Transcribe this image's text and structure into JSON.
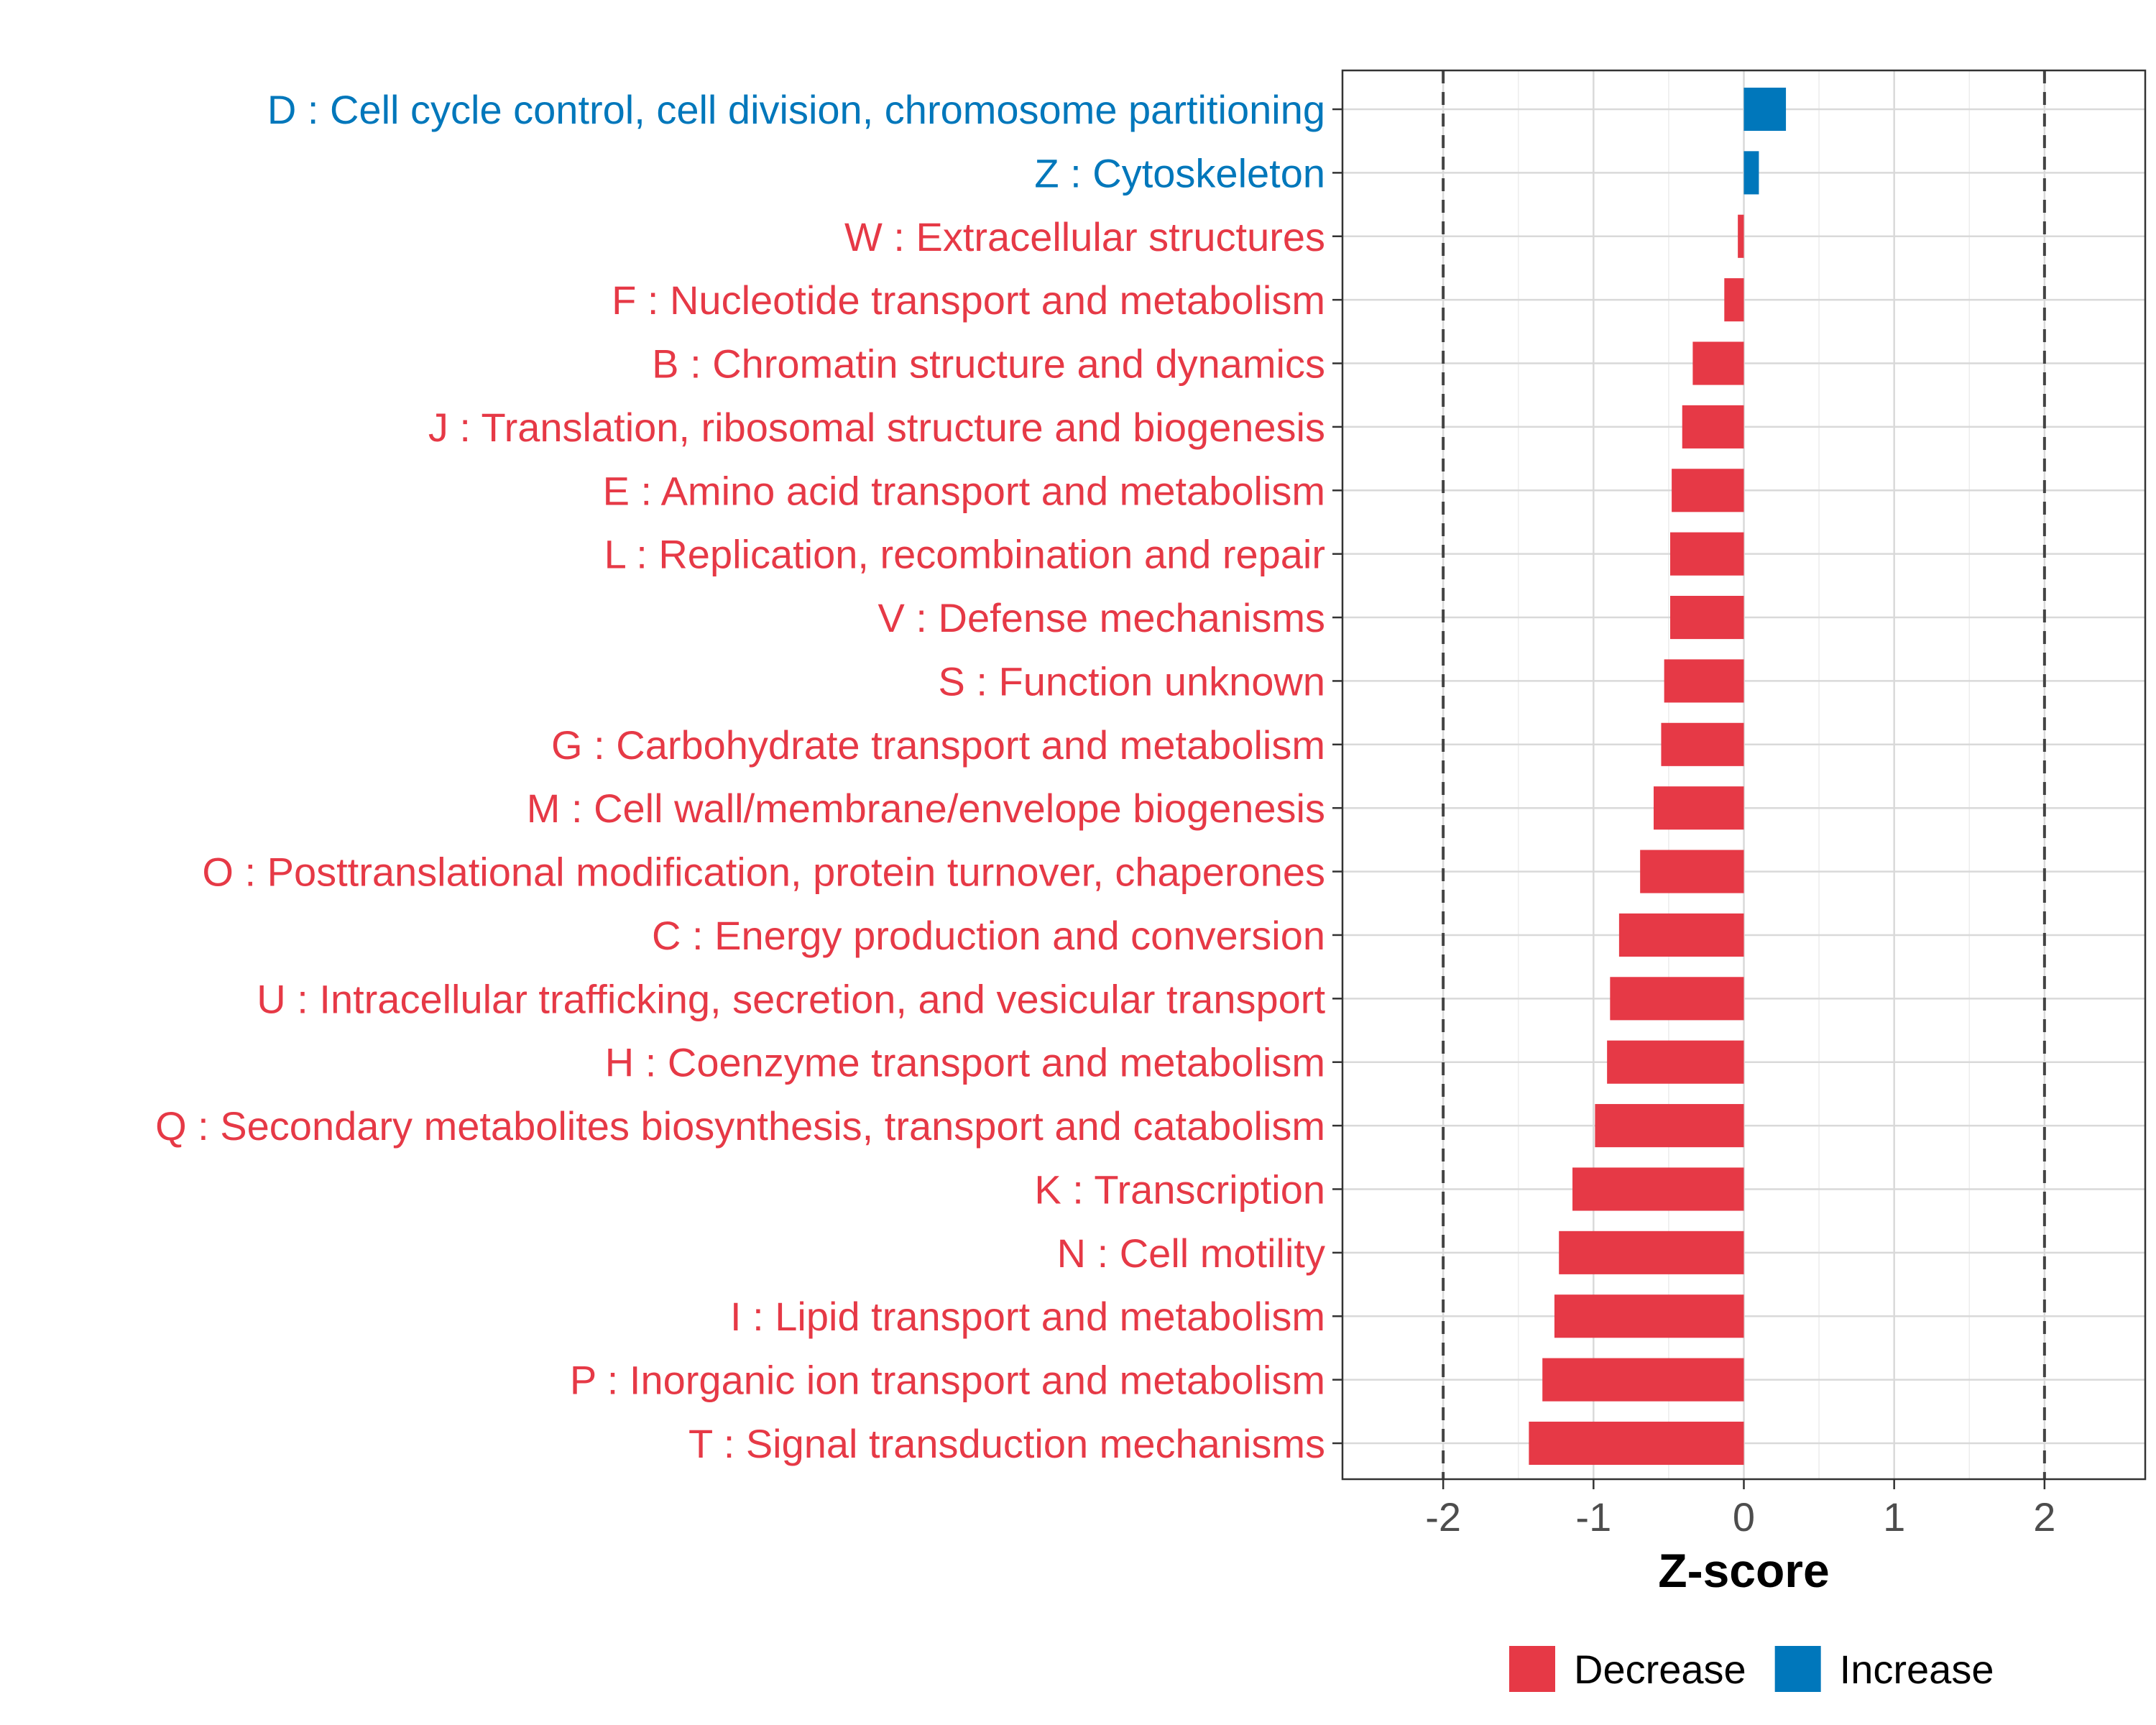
{
  "chart_data": {
    "type": "bar",
    "orientation": "horizontal",
    "xlabel": "Z-score",
    "xlim": [
      -2.67,
      2.67
    ],
    "xticks": [
      -2,
      -1,
      0,
      1,
      2
    ],
    "xtick_labels": [
      "-2",
      "-1",
      "0",
      "1",
      "2"
    ],
    "reference_lines": [
      -2,
      2
    ],
    "grid": true,
    "legend_position": "bottom",
    "legend": [
      {
        "label": "Decrease",
        "color": "#E63946"
      },
      {
        "label": "Increase",
        "color": "#0077BB"
      }
    ],
    "categories": [
      "D : Cell cycle control, cell division, chromosome partitioning",
      "Z : Cytoskeleton",
      "W : Extracellular structures",
      "F : Nucleotide transport and metabolism",
      "B : Chromatin structure and dynamics",
      "J : Translation, ribosomal structure and biogenesis",
      "E : Amino acid transport and metabolism",
      "L : Replication, recombination and repair",
      "V : Defense mechanisms",
      "S : Function unknown",
      "G : Carbohydrate transport and metabolism",
      "M : Cell wall/membrane/envelope biogenesis",
      "O : Posttranslational modification, protein turnover, chaperones",
      "C : Energy production and conversion",
      "U : Intracellular trafficking, secretion, and vesicular transport",
      "H : Coenzyme transport and metabolism",
      "Q : Secondary metabolites biosynthesis, transport and catabolism",
      "K : Transcription",
      "N : Cell motility",
      "I : Lipid transport and metabolism",
      "P : Inorganic ion transport and metabolism",
      "T : Signal transduction mechanisms"
    ],
    "values": [
      0.28,
      0.1,
      -0.04,
      -0.13,
      -0.34,
      -0.41,
      -0.48,
      -0.49,
      -0.49,
      -0.53,
      -0.55,
      -0.6,
      -0.69,
      -0.83,
      -0.89,
      -0.91,
      -0.99,
      -1.14,
      -1.23,
      -1.26,
      -1.34,
      -1.43
    ],
    "direction": [
      "Increase",
      "Increase",
      "Decrease",
      "Decrease",
      "Decrease",
      "Decrease",
      "Decrease",
      "Decrease",
      "Decrease",
      "Decrease",
      "Decrease",
      "Decrease",
      "Decrease",
      "Decrease",
      "Decrease",
      "Decrease",
      "Decrease",
      "Decrease",
      "Decrease",
      "Decrease",
      "Decrease",
      "Decrease"
    ]
  }
}
